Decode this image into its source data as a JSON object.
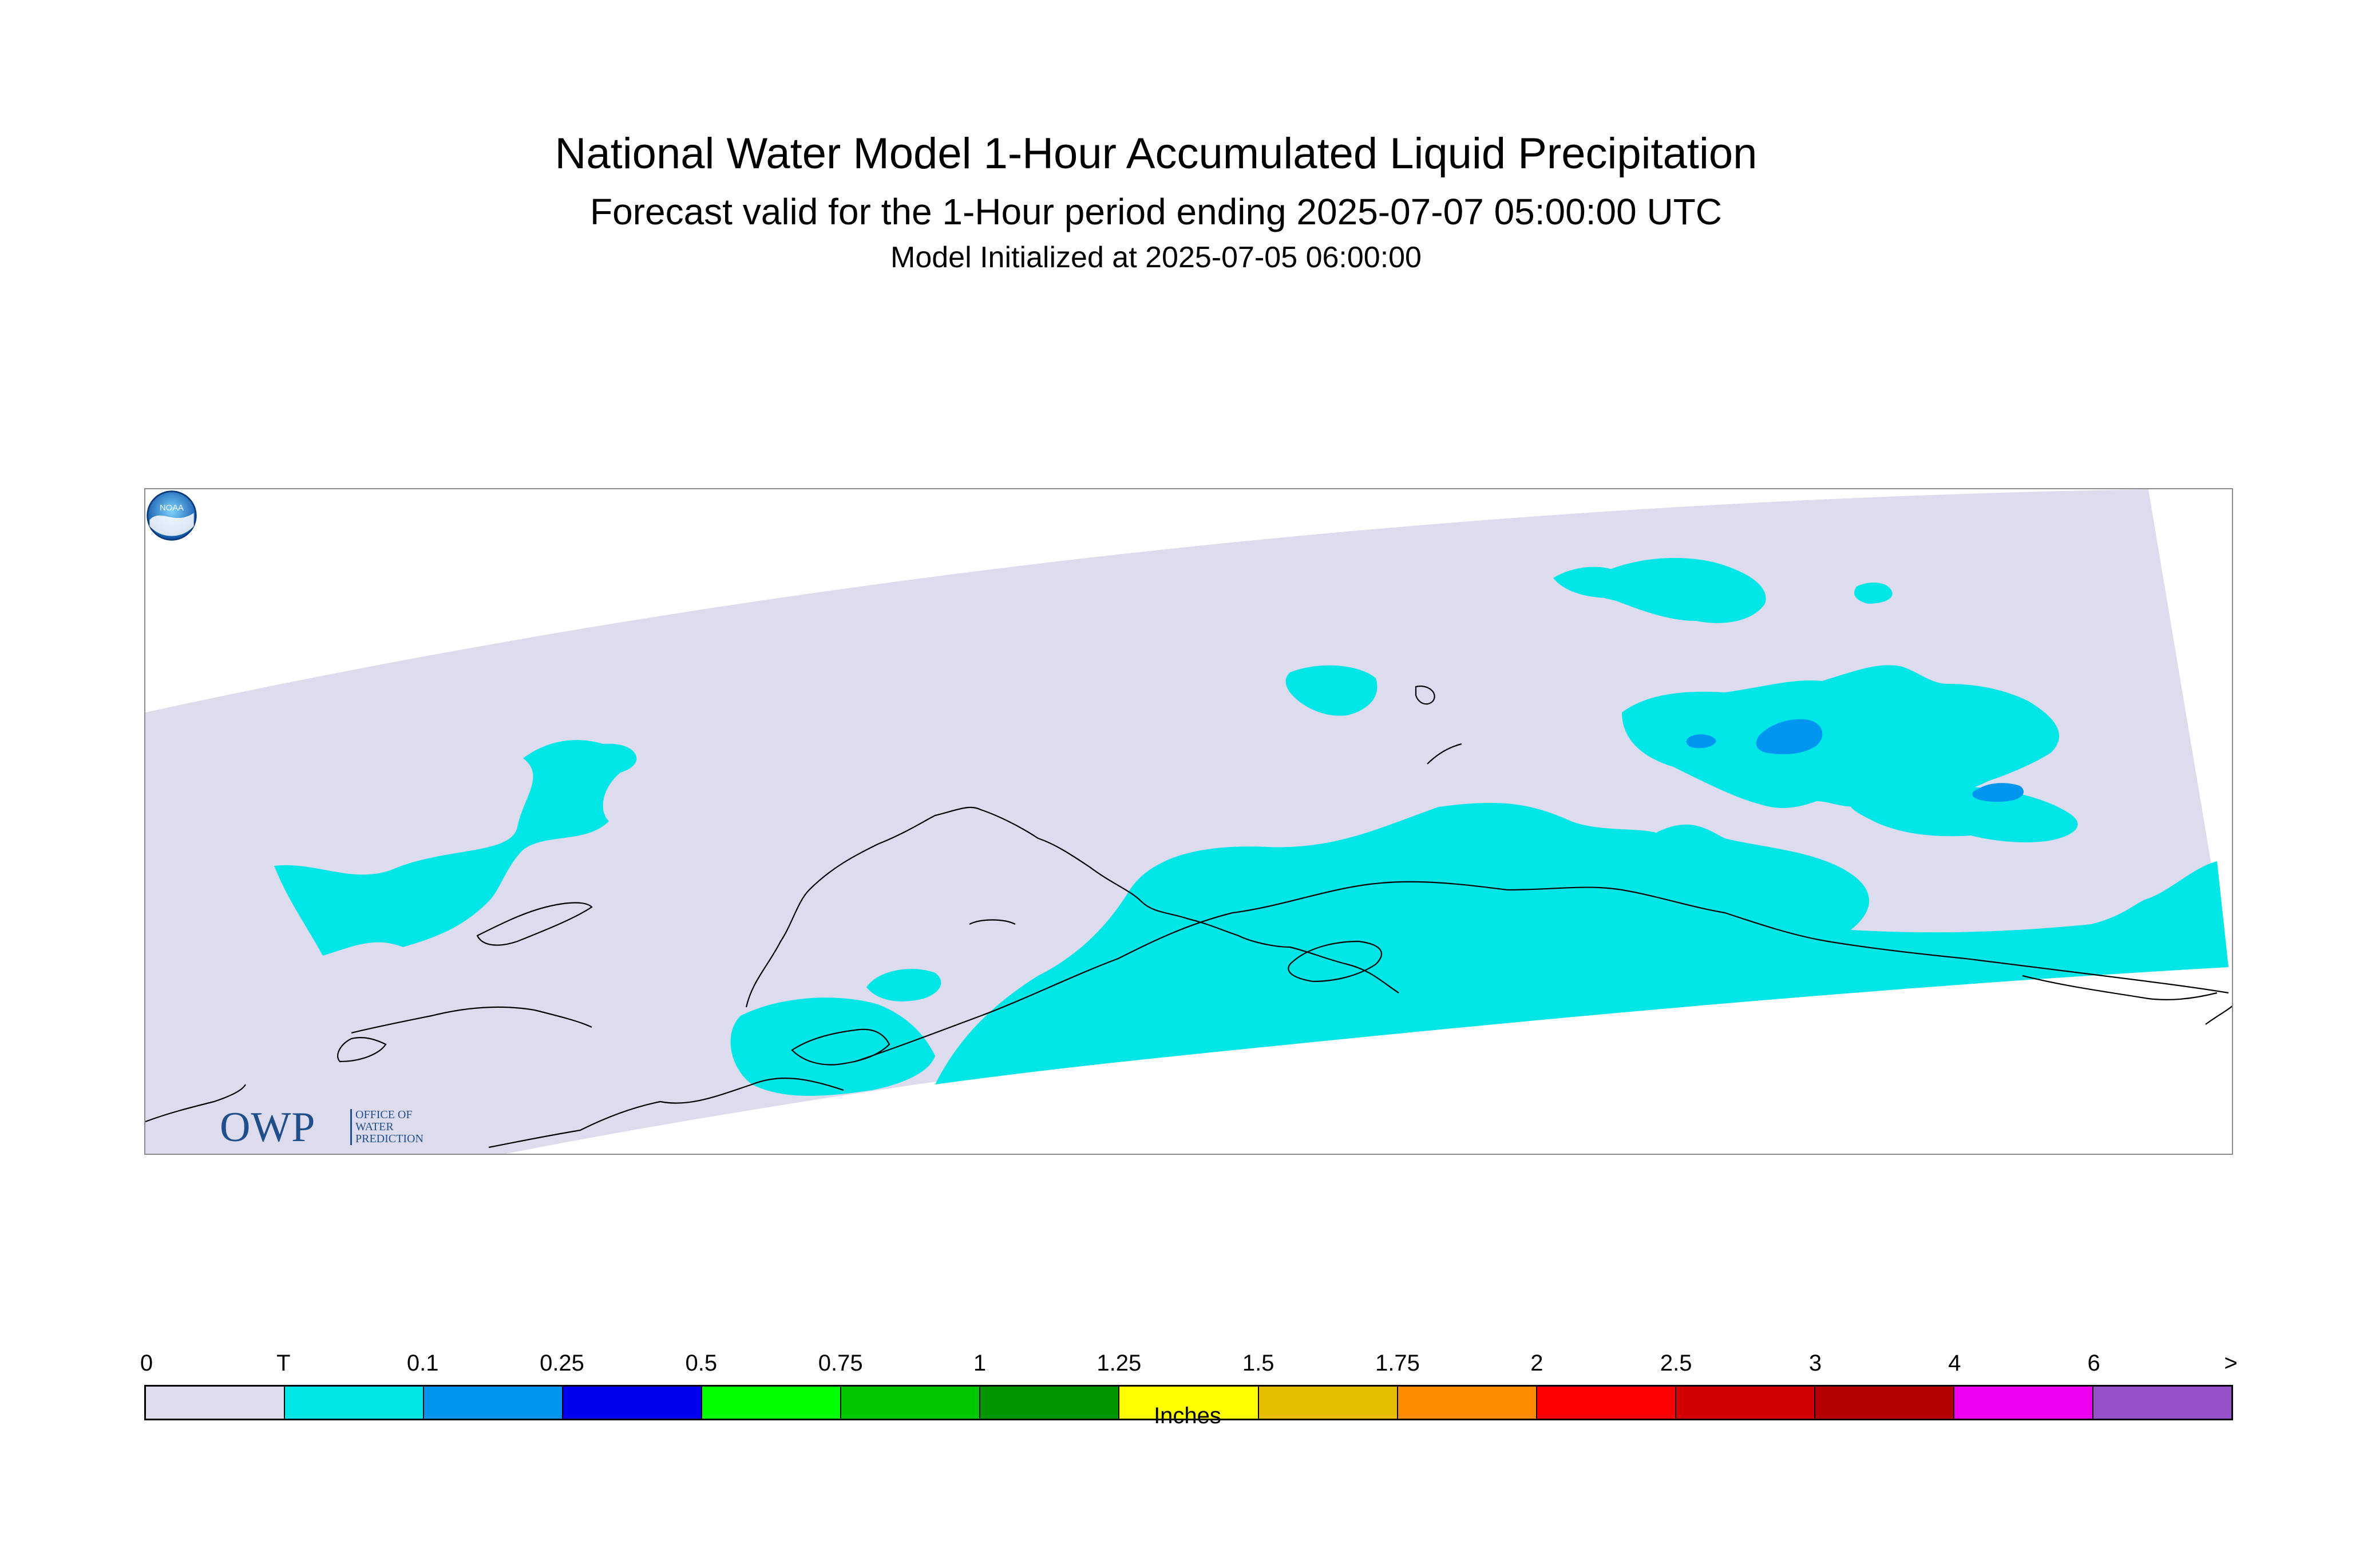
{
  "header": {
    "title": "National Water Model 1-Hour Accumulated Liquid Precipitation",
    "subtitle": "Forecast valid for the 1-Hour period ending 2025-07-07 05:00:00 UTC",
    "init_line": "Model Initialized at 2025-07-05 06:00:00"
  },
  "logos": {
    "owp_text": "OWP",
    "owp_lines": [
      "OFFICE OF",
      "WATER",
      "PREDICTION"
    ],
    "noaa_text": "NOAA"
  },
  "map": {
    "colors": {
      "domain": "#dcdcee",
      "trace": "#00e6e6",
      "light_blue": "#0096f0",
      "coast": "#000000",
      "frame": "#8a8a8a"
    }
  },
  "legend": {
    "units": "Inches",
    "tick_labels": [
      "0",
      "T",
      "0.1",
      "0.25",
      "0.5",
      "0.75",
      "1",
      "1.25",
      "1.5",
      "1.75",
      "2",
      "2.5",
      "3",
      "4",
      "6",
      ">"
    ],
    "bins": [
      {
        "color": "#dcdcee"
      },
      {
        "color": "#00e6e6"
      },
      {
        "color": "#0096f0"
      },
      {
        "color": "#0000f0"
      },
      {
        "color": "#00ff00"
      },
      {
        "color": "#00c800"
      },
      {
        "color": "#009600"
      },
      {
        "color": "#ffff00"
      },
      {
        "color": "#e6be00"
      },
      {
        "color": "#ff8c00"
      },
      {
        "color": "#ff0000"
      },
      {
        "color": "#d20000"
      },
      {
        "color": "#b40000"
      },
      {
        "color": "#f000f0"
      },
      {
        "color": "#9650c8"
      }
    ]
  }
}
